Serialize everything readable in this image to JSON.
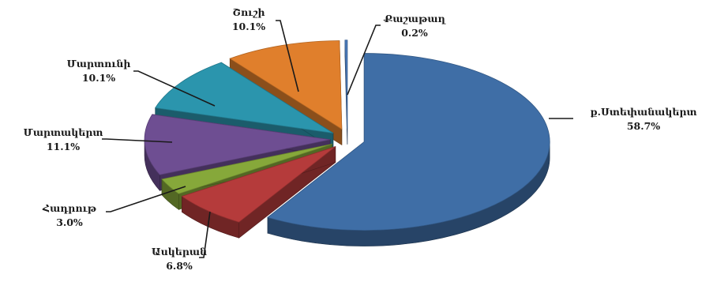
{
  "chart_data": {
    "type": "pie",
    "title": "",
    "categories": [
      "ք.Ստեփանակերտ",
      "Ասկերան",
      "Հադրութ",
      "Մարտակերտ",
      "Մարտունի",
      "Շուշի",
      "Քաշաթաղ"
    ],
    "values": [
      58.7,
      6.8,
      3.0,
      11.1,
      10.1,
      10.1,
      0.2
    ],
    "value_labels": [
      "58.7%",
      "6.8%",
      "3.0%",
      "11.1%",
      "10.1%",
      "10.1%",
      "0.2%"
    ],
    "colors": [
      "#3f6ea6",
      "#b53b3b",
      "#86a83a",
      "#6e4e92",
      "#2b95ad",
      "#e07f2c",
      "#4a7aba"
    ],
    "three_d": true,
    "exploded": true,
    "legend": "none"
  }
}
